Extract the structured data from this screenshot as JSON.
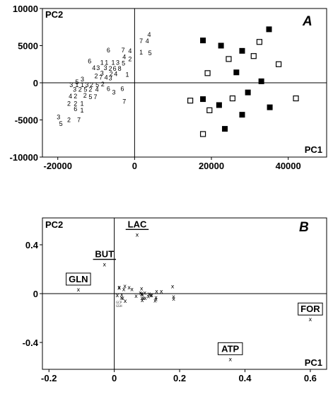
{
  "chart_data": [
    {
      "type": "scatter",
      "panel_label": "A",
      "xlabel": "PC1",
      "ylabel": "PC2",
      "xlim": [
        -24000,
        50000
      ],
      "ylim": [
        -10000,
        10000
      ],
      "xticks": [
        "-20000",
        "0",
        "20000",
        "40000"
      ],
      "xtick_values": [
        -20000,
        0,
        20000,
        40000
      ],
      "yticks": [
        "10000",
        "5000",
        "0",
        "-5000",
        "-10000"
      ],
      "ytick_values": [
        10000,
        5000,
        0,
        -5000,
        -10000
      ],
      "series": [
        {
          "marker": "filled-square",
          "points": [
            [
              17800,
              5700
            ],
            [
              22500,
              5000
            ],
            [
              35000,
              7200
            ],
            [
              28000,
              4300
            ],
            [
              26500,
              1400
            ],
            [
              33000,
              200
            ],
            [
              17800,
              -2200
            ],
            [
              22000,
              -3000
            ],
            [
              29500,
              -1300
            ],
            [
              35200,
              -3300
            ],
            [
              28000,
              -4300
            ],
            [
              23500,
              -6200
            ]
          ]
        },
        {
          "marker": "open-square",
          "points": [
            [
              32500,
              5500
            ],
            [
              24500,
              3200
            ],
            [
              31000,
              3600
            ],
            [
              37500,
              2500
            ],
            [
              19000,
              1300
            ],
            [
              14500,
              -2400
            ],
            [
              25500,
              -2100
            ],
            [
              19500,
              -3700
            ],
            [
              42000,
              -2100
            ],
            [
              17800,
              -6900
            ]
          ]
        },
        {
          "marker": "number-label",
          "points": [
            {
              "x": 3800,
              "y": 6500,
              "label": "4"
            },
            {
              "x": 1700,
              "y": 5600,
              "label": "7"
            },
            {
              "x": 3300,
              "y": 5600,
              "label": "4"
            },
            {
              "x": -6800,
              "y": 4400,
              "label": "6"
            },
            {
              "x": -3000,
              "y": 4400,
              "label": "7"
            },
            {
              "x": -1200,
              "y": 4300,
              "label": "4"
            },
            {
              "x": 1700,
              "y": 4100,
              "label": "1"
            },
            {
              "x": 4000,
              "y": 4000,
              "label": "5"
            },
            {
              "x": -2700,
              "y": 3500,
              "label": "4"
            },
            {
              "x": -1200,
              "y": 3200,
              "label": "2"
            },
            {
              "x": -8500,
              "y": 2700,
              "label": "1"
            },
            {
              "x": -7300,
              "y": 2700,
              "label": "1"
            },
            {
              "x": -5600,
              "y": 2700,
              "label": "1"
            },
            {
              "x": -4400,
              "y": 2700,
              "label": "3"
            },
            {
              "x": -2900,
              "y": 2600,
              "label": "5"
            },
            {
              "x": -11700,
              "y": 2900,
              "label": "6"
            },
            {
              "x": -10600,
              "y": 2000,
              "label": "4"
            },
            {
              "x": -9500,
              "y": 2000,
              "label": "3"
            },
            {
              "x": -7600,
              "y": 2000,
              "label": "3"
            },
            {
              "x": -6300,
              "y": 1900,
              "label": "2"
            },
            {
              "x": -5200,
              "y": 1900,
              "label": "6"
            },
            {
              "x": -3900,
              "y": 1900,
              "label": "8"
            },
            {
              "x": -8500,
              "y": 1300,
              "label": "3"
            },
            {
              "x": -6100,
              "y": 1200,
              "label": "2"
            },
            {
              "x": -4900,
              "y": 1200,
              "label": "4"
            },
            {
              "x": -10000,
              "y": 900,
              "label": "2"
            },
            {
              "x": -8800,
              "y": 700,
              "label": "7"
            },
            {
              "x": -7400,
              "y": 700,
              "label": "4"
            },
            {
              "x": -6300,
              "y": 600,
              "label": "3"
            },
            {
              "x": -1900,
              "y": 1100,
              "label": "1"
            },
            {
              "x": -13600,
              "y": 500,
              "label": "3"
            },
            {
              "x": -15000,
              "y": 100,
              "label": "5"
            },
            {
              "x": -16500,
              "y": -300,
              "label": "3"
            },
            {
              "x": -15000,
              "y": -300,
              "label": "1"
            },
            {
              "x": -13600,
              "y": -300,
              "label": "1"
            },
            {
              "x": -12400,
              "y": -300,
              "label": "3"
            },
            {
              "x": -11200,
              "y": -300,
              "label": "2"
            },
            {
              "x": -9700,
              "y": -300,
              "label": "5"
            },
            {
              "x": -8300,
              "y": -200,
              "label": "2"
            },
            {
              "x": -15600,
              "y": -900,
              "label": "3"
            },
            {
              "x": -14200,
              "y": -900,
              "label": "2"
            },
            {
              "x": -12800,
              "y": -900,
              "label": "5"
            },
            {
              "x": -11500,
              "y": -900,
              "label": "2"
            },
            {
              "x": -9800,
              "y": -900,
              "label": "4"
            },
            {
              "x": -6800,
              "y": -800,
              "label": "6"
            },
            {
              "x": -3200,
              "y": -800,
              "label": "6"
            },
            {
              "x": -16700,
              "y": -1800,
              "label": "4"
            },
            {
              "x": -15400,
              "y": -1800,
              "label": "2"
            },
            {
              "x": -12900,
              "y": -1700,
              "label": "2"
            },
            {
              "x": -11500,
              "y": -1900,
              "label": "5"
            },
            {
              "x": -10200,
              "y": -1900,
              "label": "7"
            },
            {
              "x": -5400,
              "y": -1300,
              "label": "3"
            },
            {
              "x": -17100,
              "y": -2800,
              "label": "2"
            },
            {
              "x": -15400,
              "y": -2800,
              "label": "2"
            },
            {
              "x": -13700,
              "y": -2800,
              "label": "1"
            },
            {
              "x": -2700,
              "y": -2500,
              "label": "7"
            },
            {
              "x": -15400,
              "y": -3500,
              "label": "6"
            },
            {
              "x": -13700,
              "y": -3700,
              "label": "1"
            },
            {
              "x": -19800,
              "y": -4600,
              "label": "3"
            },
            {
              "x": -17100,
              "y": -5000,
              "label": "2"
            },
            {
              "x": -14500,
              "y": -5000,
              "label": "7"
            },
            {
              "x": -19200,
              "y": -5500,
              "label": "5"
            }
          ]
        }
      ]
    },
    {
      "type": "scatter",
      "panel_label": "B",
      "xlabel": "PC1",
      "ylabel": "PC2",
      "xlim": [
        -0.22,
        0.65
      ],
      "ylim": [
        -0.62,
        0.62
      ],
      "xticks": [
        "-0.2",
        "0",
        "0.2",
        "0.4",
        "0.6"
      ],
      "xtick_values": [
        -0.2,
        0,
        0.2,
        0.4,
        0.6
      ],
      "yticks": [
        "0.4",
        "0",
        "-0.4"
      ],
      "ytick_values": [
        0.4,
        0,
        -0.4
      ],
      "marker": "x",
      "labeled_points": [
        {
          "name": "LAC",
          "x": 0.07,
          "y": 0.485,
          "style": "underline"
        },
        {
          "name": "BUT",
          "x": -0.03,
          "y": 0.24,
          "style": "underline"
        },
        {
          "name": "GLN",
          "x": -0.11,
          "y": 0.035,
          "style": "box"
        },
        {
          "name": "FOR",
          "x": 0.6,
          "y": -0.21,
          "style": "box"
        },
        {
          "name": "ATP",
          "x": 0.355,
          "y": -0.535,
          "style": "box"
        }
      ],
      "unlabeled_cluster": {
        "x_range": [
          0.0,
          0.19
        ],
        "y_range": [
          -0.07,
          0.06
        ],
        "count": 34,
        "tiny_labels": [
          "GCP",
          "GSH"
        ]
      }
    }
  ]
}
